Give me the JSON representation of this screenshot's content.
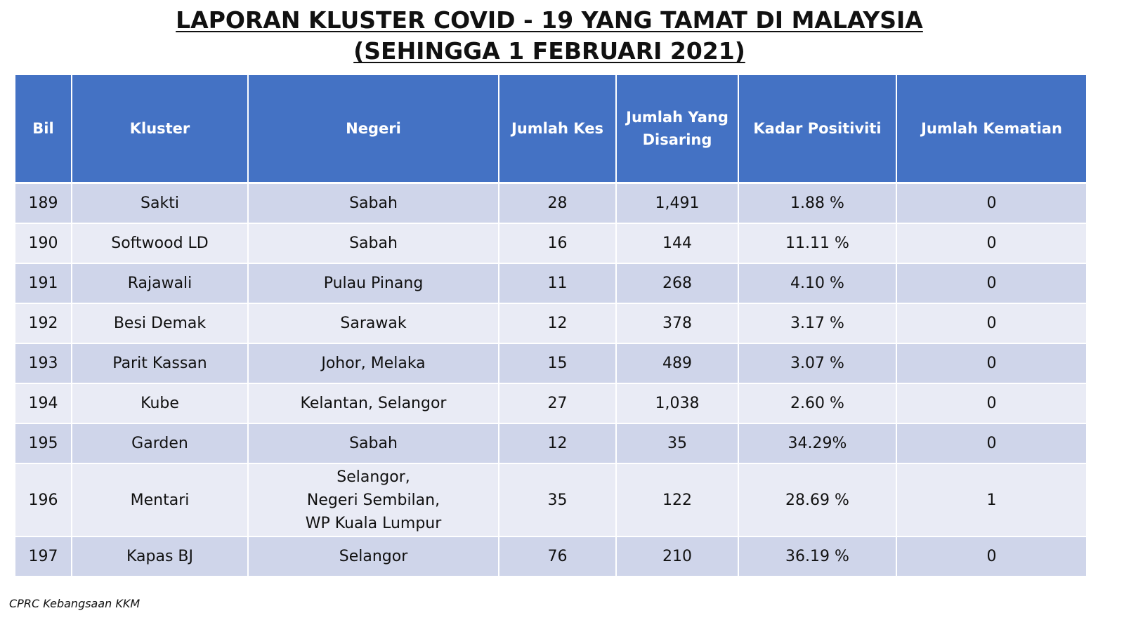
{
  "title": {
    "line1": "LAPORAN KLUSTER COVID - 19 YANG TAMAT DI MALAYSIA",
    "line2": "(SEHINGGA 1 FEBRUARI 2021)"
  },
  "table": {
    "headers": [
      "Bil",
      "Kluster",
      "Negeri",
      "Jumlah Kes",
      "Jumlah Yang Disaring",
      "Kadar Positiviti",
      "Jumlah Kematian"
    ],
    "rows": [
      [
        "189",
        "Sakti",
        "Sabah",
        "28",
        "1,491",
        "1.88 %",
        "0"
      ],
      [
        "190",
        "Softwood LD",
        "Sabah",
        "16",
        "144",
        "11.11 %",
        "0"
      ],
      [
        "191",
        "Rajawali",
        "Pulau Pinang",
        "11",
        "268",
        "4.10 %",
        "0"
      ],
      [
        "192",
        "Besi Demak",
        "Sarawak",
        "12",
        "378",
        "3.17 %",
        "0"
      ],
      [
        "193",
        "Parit Kassan",
        "Johor, Melaka",
        "15",
        "489",
        "3.07 %",
        "0"
      ],
      [
        "194",
        "Kube",
        "Kelantan, Selangor",
        "27",
        "1,038",
        "2.60 %",
        "0"
      ],
      [
        "195",
        "Garden",
        "Sabah",
        "12",
        "35",
        "34.29%",
        "0"
      ],
      [
        "196",
        "Mentari",
        "Selangor,\nNegeri Sembilan,\nWP Kuala Lumpur",
        "35",
        "122",
        "28.69 %",
        "1"
      ],
      [
        "197",
        "Kapas BJ",
        "Selangor",
        "76",
        "210",
        "36.19 %",
        "0"
      ]
    ]
  },
  "source": "CPRC Kebangsaan KKM"
}
